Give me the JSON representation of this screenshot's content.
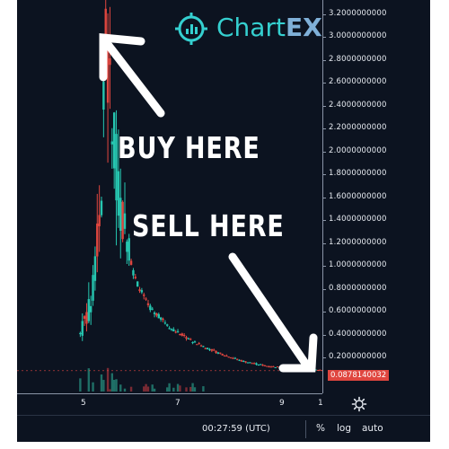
{
  "logo": {
    "text_main": "Chart",
    "text_accent": "EX",
    "icon": "crosshair-bars-logo"
  },
  "annotations": {
    "buy": "BUY HERE",
    "sell": "SELL HERE"
  },
  "y_axis": {
    "labels": [
      "3.2000000000",
      "3.0000000000",
      "2.8000000000",
      "2.6000000000",
      "2.4000000000",
      "2.2000000000",
      "2.0000000000",
      "1.8000000000",
      "1.6000000000",
      "1.4000000000",
      "1.2000000000",
      "1.0000000000",
      "0.8000000000",
      "0.6000000000",
      "0.4000000000",
      "0.2000000000"
    ],
    "current_price": "0.0878140032"
  },
  "x_axis": {
    "labels": [
      "5",
      "7",
      "9",
      "1"
    ]
  },
  "bottom_bar": {
    "time": "00:27:59 (UTC)",
    "percent": "%",
    "log": "log",
    "auto": "auto"
  },
  "icons": {
    "settings": "gear-icon"
  },
  "colors": {
    "background": "#0c1320",
    "up": "#26c6b0",
    "down": "#e0463f",
    "price_badge": "#e0463f",
    "logo": "#35d0d0"
  },
  "chart_data": {
    "type": "candlestick",
    "x_tick_labels": [
      "5",
      "7",
      "9",
      "1"
    ],
    "ylim": [
      0,
      3.2
    ],
    "current_price": 0.0878140032,
    "approx_trend": {
      "x": [
        4.5,
        4.8,
        5.0,
        5.1,
        5.2,
        5.4,
        5.7,
        6.0,
        6.5,
        7.0,
        7.5,
        8.0,
        8.5,
        9.0,
        9.5,
        10.0
      ],
      "price": [
        0.35,
        0.7,
        1.6,
        3.05,
        2.3,
        1.5,
        0.9,
        0.65,
        0.45,
        0.33,
        0.24,
        0.17,
        0.13,
        0.11,
        0.1,
        0.088
      ]
    }
  }
}
